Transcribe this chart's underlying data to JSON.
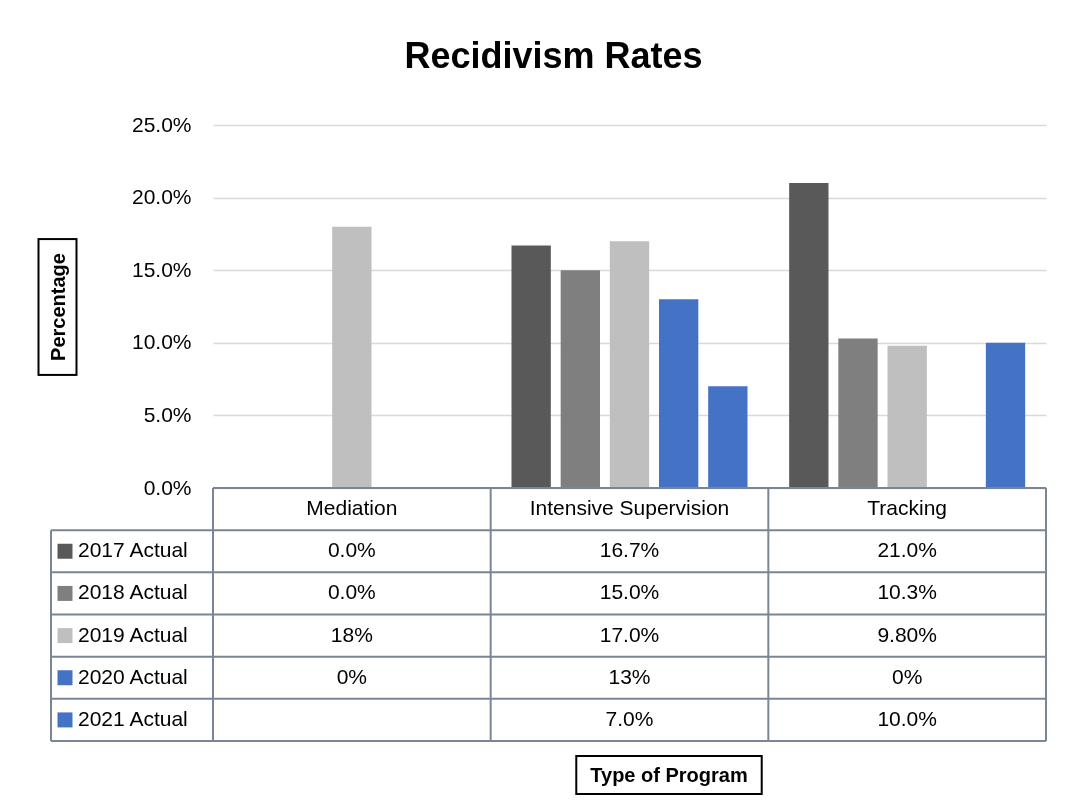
{
  "chart_data": {
    "type": "bar",
    "title": "Recidivism Rates",
    "ylabel": "Percentage",
    "annotations": [
      "Type of Program"
    ],
    "categories": [
      "Mediation",
      "Intensive Supervision",
      "Tracking"
    ],
    "series": [
      {
        "name": "2017 Actual",
        "color": "#595959",
        "values": [
          0,
          16.7,
          21.0
        ],
        "value_labels": [
          "0.0%",
          "16.7%",
          "21.0%"
        ]
      },
      {
        "name": "2018 Actual",
        "color": "#7f7f7f",
        "values": [
          0,
          15.0,
          10.3
        ],
        "value_labels": [
          "0.0%",
          "15.0%",
          "10.3%"
        ]
      },
      {
        "name": "2019 Actual",
        "color": "#bfbfbf",
        "values": [
          18,
          17.0,
          9.8
        ],
        "value_labels": [
          "18%",
          "17.0%",
          "9.80%"
        ]
      },
      {
        "name": "2020 Actual",
        "color": "#4472c4",
        "values": [
          0,
          13,
          0
        ],
        "value_labels": [
          "0%",
          "13%",
          "0%"
        ]
      },
      {
        "name": "2021 Actual",
        "color": "#4472c4",
        "values": [
          null,
          7.0,
          10.0
        ],
        "value_labels": [
          null,
          "7.0%",
          "10.0%"
        ]
      }
    ],
    "ylim": [
      0,
      25
    ],
    "yticks": [
      {
        "value": 0,
        "label": "0.0%"
      },
      {
        "value": 5,
        "label": "5.0%"
      },
      {
        "value": 10,
        "label": "10.0%"
      },
      {
        "value": 15,
        "label": "15.0%"
      },
      {
        "value": 20,
        "label": "20.0%"
      },
      {
        "value": 25,
        "label": "25.0%"
      }
    ],
    "grid": "y",
    "legend": "bottom left"
  }
}
